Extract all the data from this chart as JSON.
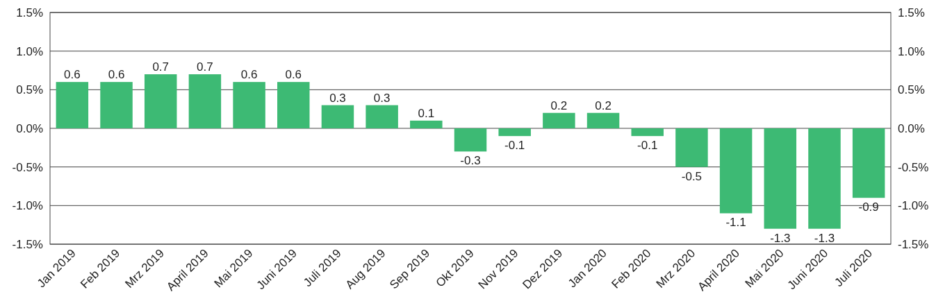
{
  "chart_data": {
    "type": "bar",
    "categories": [
      "Jan 2019",
      "Feb 2019",
      "Mrz 2019",
      "April 2019",
      "Mai 2019",
      "Juni 2019",
      "Juli 2019",
      "Aug 2019",
      "Sep 2019",
      "Okt 2019",
      "Nov 2019",
      "Dez 2019",
      "Jan 2020",
      "Feb 2020",
      "Mrz 2020",
      "April 2020",
      "Mai 2020",
      "Juni 2020",
      "Juli 2020"
    ],
    "values": [
      0.6,
      0.6,
      0.7,
      0.7,
      0.6,
      0.6,
      0.3,
      0.3,
      0.1,
      -0.3,
      -0.1,
      0.2,
      0.2,
      -0.1,
      -0.5,
      -1.1,
      -1.3,
      -1.3,
      -0.9
    ],
    "color": "#3dba74",
    "data_labels": true,
    "ylim": [
      -1.5,
      1.5
    ],
    "yticks": [
      {
        "value": -1.5,
        "label": "-1.5%"
      },
      {
        "value": -1.0,
        "label": "-1.0%"
      },
      {
        "value": -0.5,
        "label": "-0.5%"
      },
      {
        "value": 0,
        "label": "0.0%"
      },
      {
        "value": 0.5,
        "label": "0.5%"
      },
      {
        "value": 1.0,
        "label": "1.0%"
      },
      {
        "value": 1.5,
        "label": "1.5%"
      }
    ],
    "y2lim": [
      -1.5,
      1.5
    ],
    "y2ticks": [
      {
        "value": -1.5,
        "label": "-1.5%"
      },
      {
        "value": -1.0,
        "label": "-1.0%"
      },
      {
        "value": -0.5,
        "label": "-0.5%"
      },
      {
        "value": 0,
        "label": "0.0%"
      },
      {
        "value": 0.5,
        "label": "0.5%"
      },
      {
        "value": 1.0,
        "label": "1.0%"
      },
      {
        "value": 1.5,
        "label": "1.5%"
      }
    ],
    "grid": "y"
  }
}
